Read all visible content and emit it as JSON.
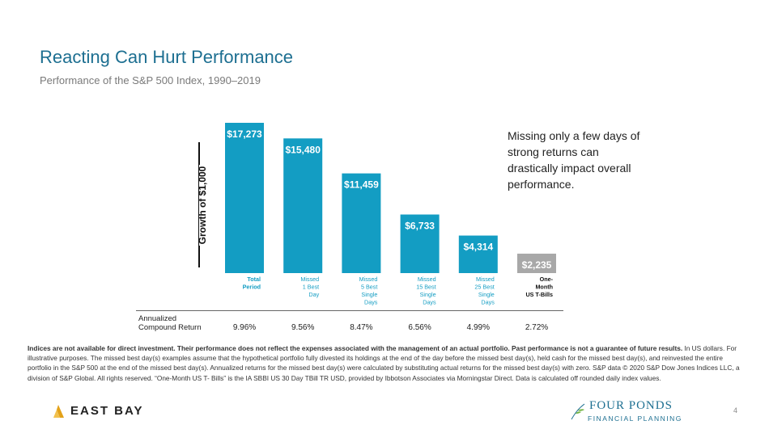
{
  "header": {
    "title": "Reacting Can Hurt Performance",
    "subtitle": "Performance of the S&P 500 Index, 1990–2019"
  },
  "chart_data": {
    "type": "bar",
    "ylabel": "Growth of $1,000",
    "categories": [
      [
        "Total",
        "Period"
      ],
      [
        "Missed",
        "1 Best",
        "Day"
      ],
      [
        "Missed",
        "5 Best",
        "Single",
        "Days"
      ],
      [
        "Missed",
        "15 Best",
        "Single",
        "Days"
      ],
      [
        "Missed",
        "25 Best",
        "Single",
        "Days"
      ],
      [
        "One-",
        "Month",
        "US T-Bills"
      ]
    ],
    "values": [
      17273,
      15480,
      11459,
      6733,
      4314,
      2235
    ],
    "value_labels": [
      "$17,273",
      "$15,480",
      "$11,459",
      "$6,733",
      "$4,314",
      "$2,235"
    ],
    "colors": [
      "#139dc3",
      "#139dc3",
      "#139dc3",
      "#139dc3",
      "#139dc3",
      "#a8a8a8"
    ],
    "ylim": [
      0,
      17273
    ],
    "grid": false
  },
  "annualized": {
    "label_line1": "Annualized",
    "label_line2": "Compound Return",
    "values": [
      "9.96%",
      "9.56%",
      "8.47%",
      "6.56%",
      "4.99%",
      "2.72%"
    ]
  },
  "callout": "Missing only a few days of strong returns can drastically impact overall performance.",
  "disclaimer": {
    "bold": "Indices are not available for direct investment. Their performance does not reflect the expenses associated with the management of an actual portfolio. Past performance is not a guarantee of future results.",
    "text": " In US dollars. For illustrative purposes. The missed best day(s) examples assume that the hypothetical portfolio fully divested its holdings at the end of the day before the missed best day(s), held cash for the missed best day(s), and reinvested the entire portfolio in the S&P 500 at the end of the missed best day(s). Annualized returns for the missed best day(s) were calculated by substituting actual returns for the missed best day(s) with zero. S&P data © 2020 S&P Dow Jones Indices LLC, a division of S&P Global. All rights reserved. “One-Month US T- Bills” is the IA SBBI US 30 Day TBill TR USD, provided by Ibbotson Associates via Morningstar Direct. Data is calculated off rounded daily index values."
  },
  "footer": {
    "left_logo": "EAST BAY",
    "right_logo_name": "FOUR PONDS",
    "right_logo_sub": "FINANCIAL PLANNING",
    "page_number": "4"
  }
}
